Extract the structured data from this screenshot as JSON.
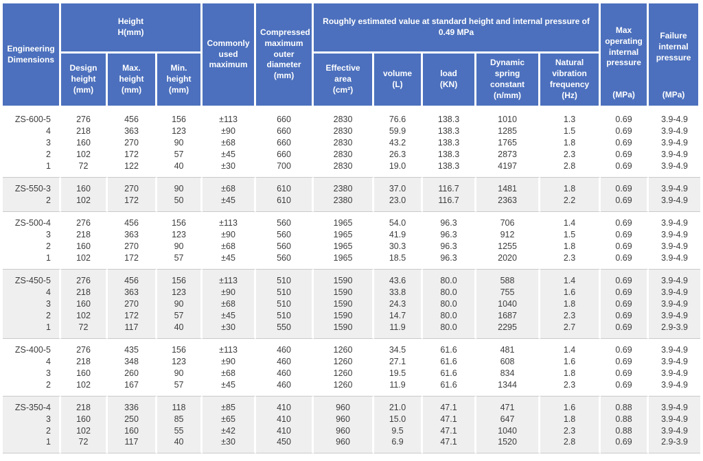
{
  "colors": {
    "header_bg": "#4c70bd",
    "band_gray": "#efefef",
    "rule": "#c9c9c9",
    "text": "#3c3c3c"
  },
  "chart_data": {
    "type": "table",
    "header": {
      "engineering_dimensions": "Engineering Dimensions",
      "height": {
        "title": "Height",
        "unit": "H(mm)"
      },
      "design_height": {
        "label": "Design height",
        "unit": "(mm)"
      },
      "max_height": {
        "label": "Max. height",
        "unit": "(mm)"
      },
      "min_height": {
        "label": "Min. height",
        "unit": "(mm)"
      },
      "commonly_used_maximum": "Commonly used maximum",
      "compressed_od": {
        "label": "Compressed maximum outer diameter",
        "unit": "(mm)"
      },
      "estimated_group": "Roughly estimated value at standard height and internal pressure of 0.49 MPa",
      "effective_area": {
        "label": "Effective area",
        "unit": "(cm²)"
      },
      "volume": {
        "label": "volume",
        "unit": "(L)"
      },
      "load": {
        "label": "load",
        "unit": "(KN)"
      },
      "spring_constant": {
        "label": "Dynamic spring constant",
        "unit": "(n/mm)"
      },
      "vibration_frequency": {
        "label": "Natural vibration frequency",
        "unit": "(Hz)"
      },
      "max_operating_pressure": {
        "label": "Max operating internal pressure",
        "unit": "(MPa)"
      },
      "failure_pressure": {
        "label": "Failure internal pressure",
        "unit": "(MPa)"
      }
    },
    "column_keys": [
      "model",
      "design_height_mm",
      "max_height_mm",
      "min_height_mm",
      "commonly_used_maximum",
      "compressed_max_outer_diameter_mm",
      "effective_area_cm2",
      "volume_l",
      "load_kn",
      "dynamic_spring_constant_n_mm",
      "natural_vibration_frequency_hz",
      "max_operating_internal_pressure_mpa",
      "failure_internal_pressure_mpa"
    ],
    "groups": [
      {
        "model": "ZS-600-5",
        "band": "white",
        "rows": [
          [
            "ZS-600-5",
            "276",
            "456",
            "156",
            "±113",
            "660",
            "2830",
            "76.6",
            "138.3",
            "1010",
            "1.3",
            "0.69",
            "3.9-4.9"
          ],
          [
            "4",
            "218",
            "363",
            "123",
            "±90",
            "660",
            "2830",
            "59.9",
            "138.3",
            "1285",
            "1.5",
            "0.69",
            "3.9-4.9"
          ],
          [
            "3",
            "160",
            "270",
            "90",
            "±68",
            "660",
            "2830",
            "43.2",
            "138.3",
            "1765",
            "1.8",
            "0.69",
            "3.9-4.9"
          ],
          [
            "2",
            "102",
            "172",
            "57",
            "±45",
            "660",
            "2830",
            "26.3",
            "138.3",
            "2873",
            "2.3",
            "0.69",
            "3.9-4.9"
          ],
          [
            "1",
            "72",
            "122",
            "40",
            "±30",
            "700",
            "2830",
            "19.0",
            "138.3",
            "4197",
            "2.8",
            "0.69",
            "3.9-4.9"
          ]
        ]
      },
      {
        "model": "ZS-550-3",
        "band": "gray",
        "rows": [
          [
            "ZS-550-3",
            "160",
            "270",
            "90",
            "±68",
            "610",
            "2380",
            "37.0",
            "116.7",
            "1481",
            "1.8",
            "0.69",
            "3.9-4.9"
          ],
          [
            "2",
            "102",
            "172",
            "50",
            "±45",
            "610",
            "2380",
            "23.0",
            "116.7",
            "2363",
            "2.2",
            "0.69",
            "3.9-4.9"
          ]
        ]
      },
      {
        "model": "ZS-500-4",
        "band": "white",
        "rows": [
          [
            "ZS-500-4",
            "276",
            "456",
            "156",
            "±113",
            "560",
            "1965",
            "54.0",
            "96.3",
            "706",
            "1.4",
            "0.69",
            "3.9-4.9"
          ],
          [
            "3",
            "218",
            "363",
            "123",
            "±90",
            "560",
            "1965",
            "41.9",
            "96.3",
            "912",
            "1.5",
            "0.69",
            "3.9-4.9"
          ],
          [
            "2",
            "160",
            "270",
            "90",
            "±68",
            "560",
            "1965",
            "30.3",
            "96.3",
            "1255",
            "1.8",
            "0.69",
            "3.9-4.9"
          ],
          [
            "1",
            "102",
            "172",
            "57",
            "±45",
            "560",
            "1965",
            "18.5",
            "96.3",
            "2020",
            "2.3",
            "0.69",
            "3.9-4.9"
          ]
        ]
      },
      {
        "model": "ZS-450-5",
        "band": "gray",
        "rows": [
          [
            "ZS-450-5",
            "276",
            "456",
            "156",
            "±113",
            "510",
            "1590",
            "43.6",
            "80.0",
            "588",
            "1.4",
            "0.69",
            "3.9-4.9"
          ],
          [
            "4",
            "218",
            "363",
            "123",
            "±90",
            "510",
            "1590",
            "33.8",
            "80.0",
            "755",
            "1.6",
            "0.69",
            "3.9-4.9"
          ],
          [
            "3",
            "160",
            "270",
            "90",
            "±68",
            "510",
            "1590",
            "24.3",
            "80.0",
            "1040",
            "1.8",
            "0.69",
            "3.9-4.9"
          ],
          [
            "2",
            "102",
            "172",
            "57",
            "±45",
            "510",
            "1590",
            "14.7",
            "80.0",
            "1687",
            "2.3",
            "0.69",
            "3.9-4.9"
          ],
          [
            "1",
            "72",
            "117",
            "40",
            "±30",
            "550",
            "1590",
            "11.9",
            "80.0",
            "2295",
            "2.7",
            "0.69",
            "2.9-3.9"
          ]
        ]
      },
      {
        "model": "ZS-400-5",
        "band": "white",
        "rows": [
          [
            "ZS-400-5",
            "276",
            "435",
            "156",
            "±113",
            "460",
            "1260",
            "34.5",
            "61.6",
            "481",
            "1.4",
            "0.69",
            "3.9-4.9"
          ],
          [
            "4",
            "218",
            "348",
            "123",
            "±90",
            "460",
            "1260",
            "27.1",
            "61.6",
            "608",
            "1.6",
            "0.69",
            "3.9-4.9"
          ],
          [
            "3",
            "160",
            "260",
            "90",
            "±68",
            "460",
            "1260",
            "19.5",
            "61.6",
            "834",
            "1.8",
            "0.69",
            "3.9-4.9"
          ],
          [
            "2",
            "102",
            "167",
            "57",
            "±45",
            "460",
            "1260",
            "11.9",
            "61.6",
            "1344",
            "2.3",
            "0.69",
            "3.9-4.9"
          ]
        ]
      },
      {
        "model": "ZS-350-4",
        "band": "gray",
        "rows": [
          [
            "ZS-350-4",
            "218",
            "336",
            "118",
            "±85",
            "410",
            "960",
            "21.0",
            "47.1",
            "471",
            "1.6",
            "0.88",
            "3.9-4.9"
          ],
          [
            "3",
            "160",
            "250",
            "85",
            "±65",
            "410",
            "960",
            "15.0",
            "47.1",
            "647",
            "1.8",
            "0.88",
            "3.9-4.9"
          ],
          [
            "2",
            "102",
            "160",
            "55",
            "±42",
            "410",
            "960",
            "9.5",
            "47.1",
            "1040",
            "2.3",
            "0.88",
            "3.9-4.9"
          ],
          [
            "1",
            "72",
            "117",
            "40",
            "±30",
            "450",
            "960",
            "6.9",
            "47.1",
            "1520",
            "2.8",
            "0.69",
            "2.9-3.9"
          ]
        ]
      }
    ]
  }
}
